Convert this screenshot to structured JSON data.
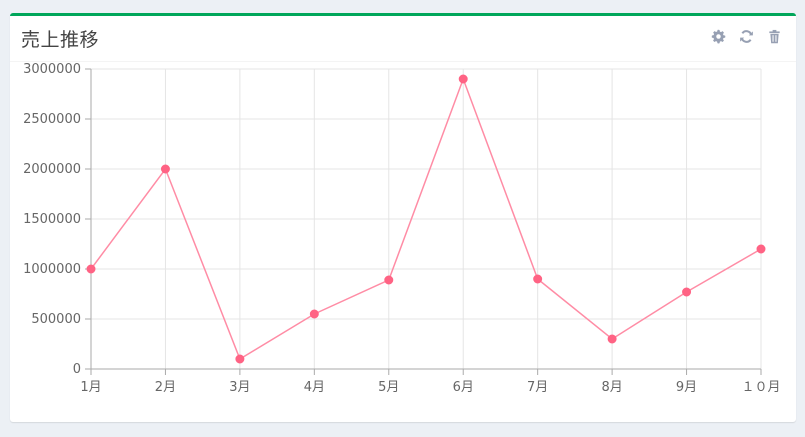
{
  "card": {
    "title": "売上推移",
    "tools": [
      {
        "icon": "gear-icon"
      },
      {
        "icon": "refresh-icon"
      },
      {
        "icon": "trash-icon"
      }
    ]
  },
  "colors": {
    "accent": "#00a65a",
    "line": "#ff8ca5",
    "point": "#ff6384",
    "grid": "#e5e5e5",
    "tool_icon": "#97a0b3"
  },
  "chart_data": {
    "type": "line",
    "categories": [
      "1月",
      "2月",
      "3月",
      "4月",
      "5月",
      "6月",
      "7月",
      "8月",
      "9月",
      "１０月"
    ],
    "series": [
      {
        "values": [
          1000000,
          2000000,
          100000,
          550000,
          890000,
          2900000,
          900000,
          300000,
          770000,
          1200000
        ]
      }
    ],
    "y_ticks": [
      "0",
      "500000",
      "1000000",
      "1500000",
      "2000000",
      "2500000",
      "3000000"
    ],
    "ylim": [
      0,
      3000000
    ],
    "grid": true,
    "legend": "none",
    "title": "",
    "xlabel": "",
    "ylabel": ""
  }
}
